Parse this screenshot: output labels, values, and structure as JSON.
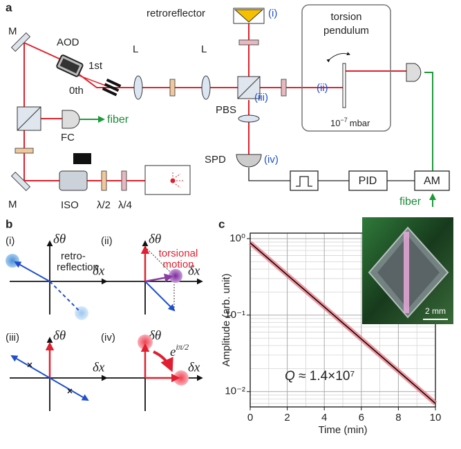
{
  "panel_a": {
    "label": "a",
    "mirror_top": "M",
    "aod": "AOD",
    "first_order": "1st",
    "zeroth_order": "0th",
    "lens_1": "L",
    "lens_2": "L",
    "retroreflector": "retroreflector",
    "marker_i": "(i)",
    "pendulum_title_1": "torsion",
    "pendulum_title_2": "pendulum",
    "pressure": {
      "base": "10",
      "exponent": "−7",
      "unit": "mbar"
    },
    "pbs": "PBS",
    "marker_iii": "(iii)",
    "marker_ii": "(ii)",
    "fiber_coupler": "FC",
    "fiber_left": "fiber",
    "spd": "SPD",
    "marker_iv": "(iv)",
    "pid": "PID",
    "am": "AM",
    "fiber_right": "fiber",
    "mirror_bottom": "M",
    "isolator": "ISO",
    "half_wave": "λ/2",
    "quarter_wave": "λ/4"
  },
  "panel_b": {
    "label": "b",
    "subpanels": [
      {
        "marker": "(i)",
        "y_axis": "δθ",
        "x_axis": "δx",
        "note": [
          "retro-",
          "reflection"
        ]
      },
      {
        "marker": "(ii)",
        "y_axis": "δθ",
        "x_axis": "δx",
        "note": [
          "torsional",
          "motion"
        ]
      },
      {
        "marker": "(iii)",
        "y_axis": "δθ",
        "x_axis": "δx"
      },
      {
        "marker": "(iv)",
        "y_axis": "δθ",
        "x_axis": "δx",
        "phase": {
          "base": "e",
          "exponent": "iπ/2"
        }
      }
    ]
  },
  "panel_c": {
    "label": "c",
    "scale_bar": "2 mm"
  },
  "chart_data": {
    "type": "line",
    "x_label": "Time (min)",
    "y_label": "Amplitude (arb. unit)",
    "annotation": {
      "symbol": "Q",
      "text": " ≈ 1.4×10⁷"
    },
    "x": [
      0,
      1,
      2,
      3,
      4,
      5,
      6,
      7,
      8,
      9,
      10
    ],
    "series": [
      {
        "color": "#000000",
        "band_color": "#ec7a84",
        "values": [
          0.88,
          0.543,
          0.335,
          0.207,
          0.128,
          0.0789,
          0.0487,
          0.03,
          0.0185,
          0.0114,
          0.007
        ]
      }
    ],
    "xlim": [
      0,
      10
    ],
    "xticks": [
      0,
      2,
      4,
      6,
      8,
      10
    ],
    "xminor": [
      1,
      3,
      5,
      7,
      9
    ],
    "ylim": [
      0.0063,
      1.18
    ],
    "log_y": true,
    "yticks": [
      {
        "value": 0.01,
        "label": "10⁻²"
      },
      {
        "value": 0.1,
        "label": "10⁻¹"
      },
      {
        "value": 1,
        "label": "10⁰"
      }
    ],
    "yminor": [
      0.007,
      0.008,
      0.009,
      0.02,
      0.03,
      0.04,
      0.05,
      0.06,
      0.07,
      0.08,
      0.09,
      0.2,
      0.3,
      0.4,
      0.5,
      0.6,
      0.7,
      0.8,
      0.9
    ],
    "grid": true
  }
}
